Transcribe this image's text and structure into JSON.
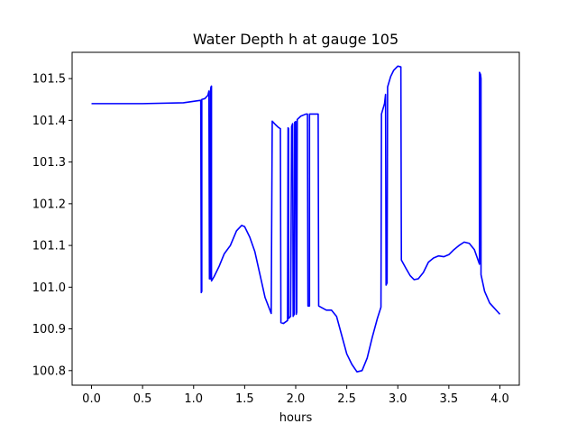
{
  "chart_data": {
    "type": "line",
    "title": "Water Depth h at gauge 105",
    "xlabel": "hours",
    "ylabel": "",
    "xlim": [
      -0.19,
      4.19
    ],
    "ylim": [
      100.765,
      101.563
    ],
    "xticks": [
      0.0,
      0.5,
      1.0,
      1.5,
      2.0,
      2.5,
      3.0,
      3.5,
      4.0
    ],
    "xtick_labels": [
      "0.0",
      "0.5",
      "1.0",
      "1.5",
      "2.0",
      "2.5",
      "3.0",
      "3.5",
      "4.0"
    ],
    "yticks": [
      100.8,
      100.9,
      101.0,
      101.1,
      101.2,
      101.3,
      101.4,
      101.5
    ],
    "ytick_labels": [
      "100.8",
      "100.9",
      "101.0",
      "101.1",
      "101.2",
      "101.3",
      "101.4",
      "101.5"
    ],
    "grid": false,
    "series": [
      {
        "name": "",
        "color": "#0000ff",
        "points": [
          [
            0.0,
            101.44
          ],
          [
            0.5,
            101.44
          ],
          [
            0.9,
            101.442
          ],
          [
            1.07,
            101.448
          ],
          [
            1.075,
            100.987
          ],
          [
            1.08,
            100.99
          ],
          [
            1.08,
            101.45
          ],
          [
            1.11,
            101.452
          ],
          [
            1.14,
            101.46
          ],
          [
            1.15,
            101.47
          ],
          [
            1.155,
            101.02
          ],
          [
            1.165,
            101.02
          ],
          [
            1.165,
            101.47
          ],
          [
            1.17,
            101.48
          ],
          [
            1.175,
            101.482
          ],
          [
            1.175,
            101.015
          ],
          [
            1.2,
            101.025
          ],
          [
            1.25,
            101.05
          ],
          [
            1.3,
            101.08
          ],
          [
            1.36,
            101.1
          ],
          [
            1.42,
            101.135
          ],
          [
            1.47,
            101.148
          ],
          [
            1.5,
            101.145
          ],
          [
            1.55,
            101.12
          ],
          [
            1.6,
            101.085
          ],
          [
            1.65,
            101.03
          ],
          [
            1.7,
            100.975
          ],
          [
            1.76,
            100.937
          ],
          [
            1.77,
            101.398
          ],
          [
            1.8,
            101.39
          ],
          [
            1.83,
            101.383
          ],
          [
            1.85,
            101.38
          ],
          [
            1.855,
            100.915
          ],
          [
            1.88,
            100.913
          ],
          [
            1.92,
            100.92
          ],
          [
            1.925,
            101.382
          ],
          [
            1.93,
            101.38
          ],
          [
            1.93,
            100.925
          ],
          [
            1.95,
            100.93
          ],
          [
            1.96,
            101.385
          ],
          [
            1.97,
            101.392
          ],
          [
            1.975,
            100.93
          ],
          [
            1.985,
            100.935
          ],
          [
            1.99,
            101.395
          ],
          [
            2.0,
            101.397
          ],
          [
            2.005,
            100.935
          ],
          [
            2.01,
            100.94
          ],
          [
            2.015,
            101.402
          ],
          [
            2.05,
            101.41
          ],
          [
            2.1,
            101.415
          ],
          [
            2.115,
            101.415
          ],
          [
            2.12,
            100.955
          ],
          [
            2.135,
            100.955
          ],
          [
            2.135,
            101.415
          ],
          [
            2.22,
            101.415
          ],
          [
            2.225,
            100.955
          ],
          [
            2.3,
            100.945
          ],
          [
            2.35,
            100.945
          ],
          [
            2.4,
            100.93
          ],
          [
            2.45,
            100.885
          ],
          [
            2.5,
            100.84
          ],
          [
            2.55,
            100.815
          ],
          [
            2.6,
            100.797
          ],
          [
            2.65,
            100.8
          ],
          [
            2.7,
            100.83
          ],
          [
            2.75,
            100.88
          ],
          [
            2.8,
            100.925
          ],
          [
            2.835,
            100.952
          ],
          [
            2.84,
            101.415
          ],
          [
            2.87,
            101.44
          ],
          [
            2.88,
            101.462
          ],
          [
            2.885,
            101.005
          ],
          [
            2.895,
            101.01
          ],
          [
            2.9,
            101.48
          ],
          [
            2.93,
            101.505
          ],
          [
            2.96,
            101.52
          ],
          [
            3.0,
            101.53
          ],
          [
            3.03,
            101.528
          ],
          [
            3.035,
            101.065
          ],
          [
            3.08,
            101.045
          ],
          [
            3.12,
            101.028
          ],
          [
            3.16,
            101.018
          ],
          [
            3.2,
            101.02
          ],
          [
            3.25,
            101.035
          ],
          [
            3.3,
            101.06
          ],
          [
            3.35,
            101.07
          ],
          [
            3.4,
            101.075
          ],
          [
            3.45,
            101.073
          ],
          [
            3.5,
            101.078
          ],
          [
            3.55,
            101.09
          ],
          [
            3.6,
            101.1
          ],
          [
            3.65,
            101.108
          ],
          [
            3.7,
            101.105
          ],
          [
            3.75,
            101.09
          ],
          [
            3.8,
            101.055
          ],
          [
            3.8,
            101.515
          ],
          [
            3.81,
            101.51
          ],
          [
            3.815,
            101.5
          ],
          [
            3.815,
            101.03
          ],
          [
            3.85,
            100.99
          ],
          [
            3.9,
            100.962
          ],
          [
            4.0,
            100.935
          ]
        ]
      }
    ]
  }
}
